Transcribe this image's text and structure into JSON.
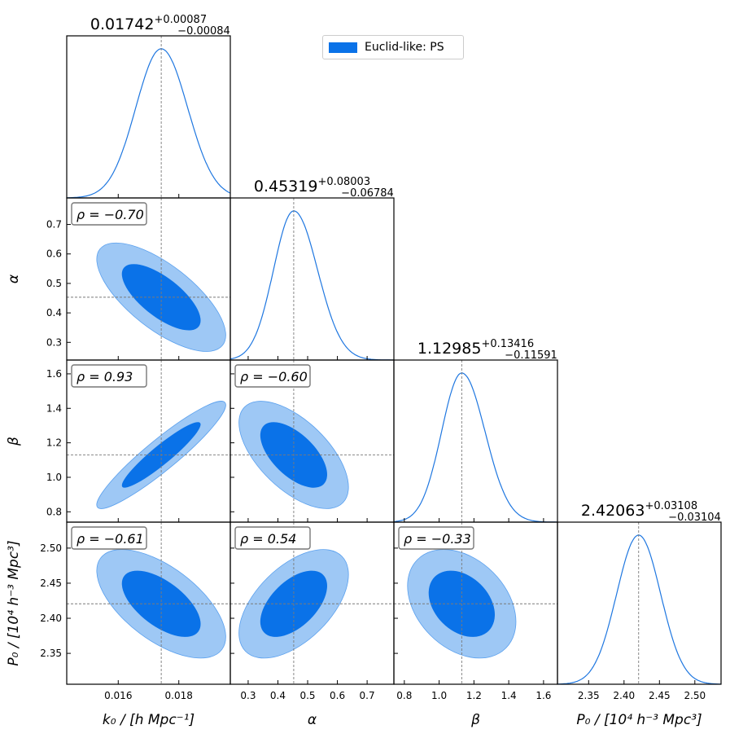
{
  "colors": {
    "dark": "#0a72e8",
    "light": "#9ec8f5",
    "line": "#1f77e0",
    "ref": "#7a7a7a"
  },
  "legend": {
    "label": "Euclid-like: PS"
  },
  "chart_data": {
    "type": "corner",
    "parameters": [
      {
        "key": "k0",
        "label": "k₀ / [h Mpc⁻¹]",
        "range": [
          0.0143,
          0.0197
        ],
        "ticks": [
          0.016,
          0.018
        ],
        "tick_labels": [
          "0.016",
          "0.018"
        ],
        "center": 0.01742,
        "plus": 0.00087,
        "minus": 0.00084,
        "summary": {
          "value": "0.01742",
          "plus": "+0.00087",
          "minus": "−0.00084"
        }
      },
      {
        "key": "alpha",
        "label": "α",
        "range": [
          0.24,
          0.79
        ],
        "ticks": [
          0.3,
          0.4,
          0.5,
          0.6,
          0.7
        ],
        "tick_labels": [
          "0.3",
          "0.4",
          "0.5",
          "0.6",
          "0.7"
        ],
        "center": 0.45319,
        "plus": 0.08003,
        "minus": 0.06784,
        "summary": {
          "value": "0.45319",
          "plus": "+0.08003",
          "minus": "−0.06784"
        }
      },
      {
        "key": "beta",
        "label": "β",
        "range": [
          0.74,
          1.68
        ],
        "ticks": [
          0.8,
          1.0,
          1.2,
          1.4,
          1.6
        ],
        "tick_labels": [
          "0.8",
          "1.0",
          "1.2",
          "1.4",
          "1.6"
        ],
        "center": 1.12985,
        "plus": 0.13416,
        "minus": 0.11591,
        "summary": {
          "value": "1.12985",
          "plus": "+0.13416",
          "minus": "−0.11591"
        }
      },
      {
        "key": "P0",
        "label": "P₀ / [10⁴ h⁻³ Mpc³]",
        "range": [
          2.306,
          2.537
        ],
        "ticks": [
          2.35,
          2.4,
          2.45,
          2.5
        ],
        "tick_labels": [
          "2.35",
          "2.40",
          "2.45",
          "2.50"
        ],
        "center": 2.42063,
        "plus": 0.03108,
        "minus": 0.03104,
        "summary": {
          "value": "2.42063",
          "plus": "+0.03108",
          "minus": "−0.03104"
        }
      }
    ],
    "correlations": [
      {
        "row": 1,
        "col": 0,
        "label": "ρ = −0.70"
      },
      {
        "row": 2,
        "col": 0,
        "label": "ρ = 0.93"
      },
      {
        "row": 2,
        "col": 1,
        "label": "ρ = −0.60"
      },
      {
        "row": 3,
        "col": 0,
        "label": "ρ = −0.61"
      },
      {
        "row": 3,
        "col": 1,
        "label": "ρ = 0.54"
      },
      {
        "row": 3,
        "col": 2,
        "label": "ρ = −0.33"
      }
    ]
  }
}
